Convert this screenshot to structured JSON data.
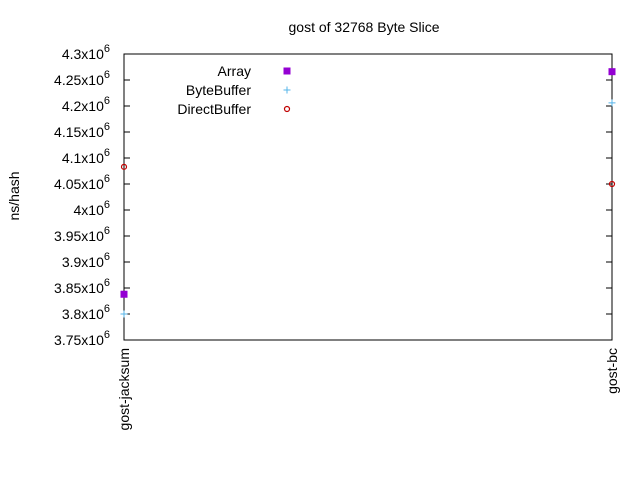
{
  "chart_data": {
    "type": "scatter",
    "title": "gost of 32768 Byte Slice",
    "xlabel": "",
    "ylabel": "ns/hash",
    "categories": [
      "gost-jacksum",
      "gost-bc"
    ],
    "ylim": [
      3750000,
      4300000
    ],
    "yticks": [
      {
        "value": 3750000,
        "mantissa": "3.75x10",
        "exp": "6"
      },
      {
        "value": 3800000,
        "mantissa": "3.8x10",
        "exp": "6"
      },
      {
        "value": 3850000,
        "mantissa": "3.85x10",
        "exp": "6"
      },
      {
        "value": 3900000,
        "mantissa": "3.9x10",
        "exp": "6"
      },
      {
        "value": 3950000,
        "mantissa": "3.95x10",
        "exp": "6"
      },
      {
        "value": 4000000,
        "mantissa": "4x10",
        "exp": "6"
      },
      {
        "value": 4050000,
        "mantissa": "4.05x10",
        "exp": "6"
      },
      {
        "value": 4100000,
        "mantissa": "4.1x10",
        "exp": "6"
      },
      {
        "value": 4150000,
        "mantissa": "4.15x10",
        "exp": "6"
      },
      {
        "value": 4200000,
        "mantissa": "4.2x10",
        "exp": "6"
      },
      {
        "value": 4250000,
        "mantissa": "4.25x10",
        "exp": "6"
      },
      {
        "value": 4300000,
        "mantissa": "4.3x10",
        "exp": "6"
      }
    ],
    "grid": false,
    "legend": "top-left",
    "series": [
      {
        "name": "Array",
        "marker": "filled-square",
        "color": "#9400d3",
        "values": [
          3838000,
          4266000
        ]
      },
      {
        "name": "ByteBuffer",
        "marker": "plus",
        "color": "#56b4e9",
        "values": [
          3800000,
          4206000
        ]
      },
      {
        "name": "DirectBuffer",
        "marker": "circle",
        "color": "#c00000",
        "values": [
          4083000,
          4050000
        ]
      }
    ]
  }
}
